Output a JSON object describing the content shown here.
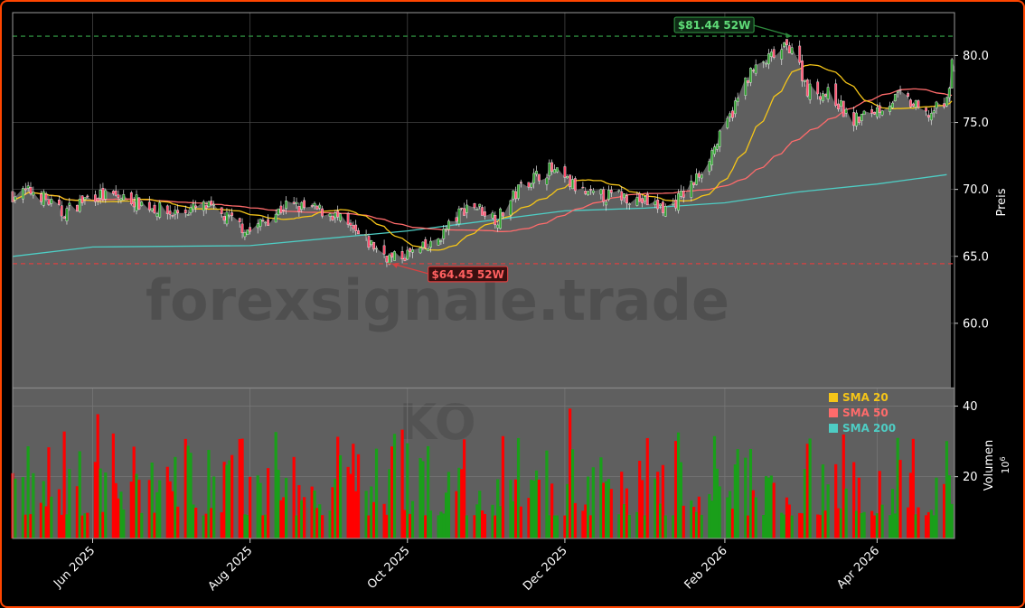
{
  "colors": {
    "frame": "#ff4500",
    "panel_bg": "#000000",
    "area_fill": "#5f5f5f",
    "candle_up": "#2ca02c",
    "candle_down": "#ff4d6d",
    "vol_up": "#1a9f1a",
    "vol_down": "#ff0000",
    "sma20": "#f5c518",
    "sma50": "#ff6b6b",
    "sma200": "#4ecdc4",
    "high_line": "#2e8b3e",
    "low_line": "#d94040"
  },
  "watermark": {
    "site": "forexsignale.trade",
    "ticker": "KO"
  },
  "chart_data": [
    {
      "type": "candlestick",
      "ylabel": "Preis",
      "ylim": [
        55.2,
        83.2
      ],
      "yticks": [
        "60.0",
        "65.0",
        "70.0",
        "75.0",
        "80.0"
      ],
      "xticks": [
        "Jun 2025",
        "Aug 2025",
        "Oct 2025",
        "Dec 2025",
        "Feb 2026",
        "Apr 2026"
      ],
      "xtick_dates": [
        "2025-06-01",
        "2025-08-01",
        "2025-10-01",
        "2025-12-01",
        "2026-02-01",
        "2026-04-01"
      ],
      "date_range": [
        "2025-05-01",
        "2026-05-01"
      ],
      "annotations": [
        {
          "label": "$81.44 52W",
          "value": 81.44,
          "date": "2026-02-27",
          "kind": "high"
        },
        {
          "label": "$64.45 52W",
          "value": 64.45,
          "date": "2025-09-25",
          "kind": "low"
        }
      ],
      "close_anchors": [
        [
          "2025-05-01",
          69.6
        ],
        [
          "2025-05-10",
          69.9
        ],
        [
          "2025-05-20",
          68.2
        ],
        [
          "2025-06-01",
          69.6
        ],
        [
          "2025-06-15",
          69.3
        ],
        [
          "2025-07-01",
          68.2
        ],
        [
          "2025-07-15",
          68.7
        ],
        [
          "2025-08-01",
          66.9
        ],
        [
          "2025-08-15",
          68.8
        ],
        [
          "2025-09-01",
          68.3
        ],
        [
          "2025-09-10",
          66.8
        ],
        [
          "2025-09-25",
          64.8
        ],
        [
          "2025-10-10",
          65.7
        ],
        [
          "2025-10-25",
          69.0
        ],
        [
          "2025-11-05",
          67.8
        ],
        [
          "2025-11-15",
          70.5
        ],
        [
          "2025-11-25",
          71.5
        ],
        [
          "2025-12-10",
          69.5
        ],
        [
          "2025-12-25",
          69.5
        ],
        [
          "2026-01-10",
          68.5
        ],
        [
          "2026-01-20",
          70.5
        ],
        [
          "2026-02-01",
          74.5
        ],
        [
          "2026-02-10",
          78.5
        ],
        [
          "2026-02-20",
          80.0
        ],
        [
          "2026-02-27",
          80.8
        ],
        [
          "2026-03-05",
          77.5
        ],
        [
          "2026-03-15",
          77.0
        ],
        [
          "2026-03-22",
          75.0
        ],
        [
          "2026-04-01",
          76.0
        ],
        [
          "2026-04-10",
          77.0
        ],
        [
          "2026-04-20",
          75.5
        ],
        [
          "2026-04-28",
          76.5
        ],
        [
          "2026-04-30",
          79.7
        ]
      ]
    },
    {
      "type": "bar",
      "ylabel": "Volumen",
      "unit_label": "10",
      "unit_exponent": "6",
      "ylim": [
        2.5,
        45
      ],
      "yticks": [
        "20",
        "40"
      ],
      "up_color_means": "close >= open",
      "volume_range_millions": [
        9,
        40
      ]
    }
  ],
  "legend": {
    "position": "top-right of volume panel",
    "items": [
      {
        "label": "SMA 20",
        "color": "#f5c518"
      },
      {
        "label": "SMA 50",
        "color": "#ff6b6b"
      },
      {
        "label": "SMA 200",
        "color": "#4ecdc4"
      }
    ]
  },
  "series": {
    "sma200_anchors": [
      [
        "2025-05-01",
        65.0
      ],
      [
        "2025-06-01",
        65.7
      ],
      [
        "2025-08-01",
        65.8
      ],
      [
        "2025-10-01",
        66.9
      ],
      [
        "2025-12-01",
        68.4
      ],
      [
        "2026-01-01",
        68.6
      ],
      [
        "2026-02-01",
        69.0
      ],
      [
        "2026-03-01",
        69.8
      ],
      [
        "2026-04-01",
        70.4
      ],
      [
        "2026-04-28",
        71.1
      ]
    ]
  }
}
